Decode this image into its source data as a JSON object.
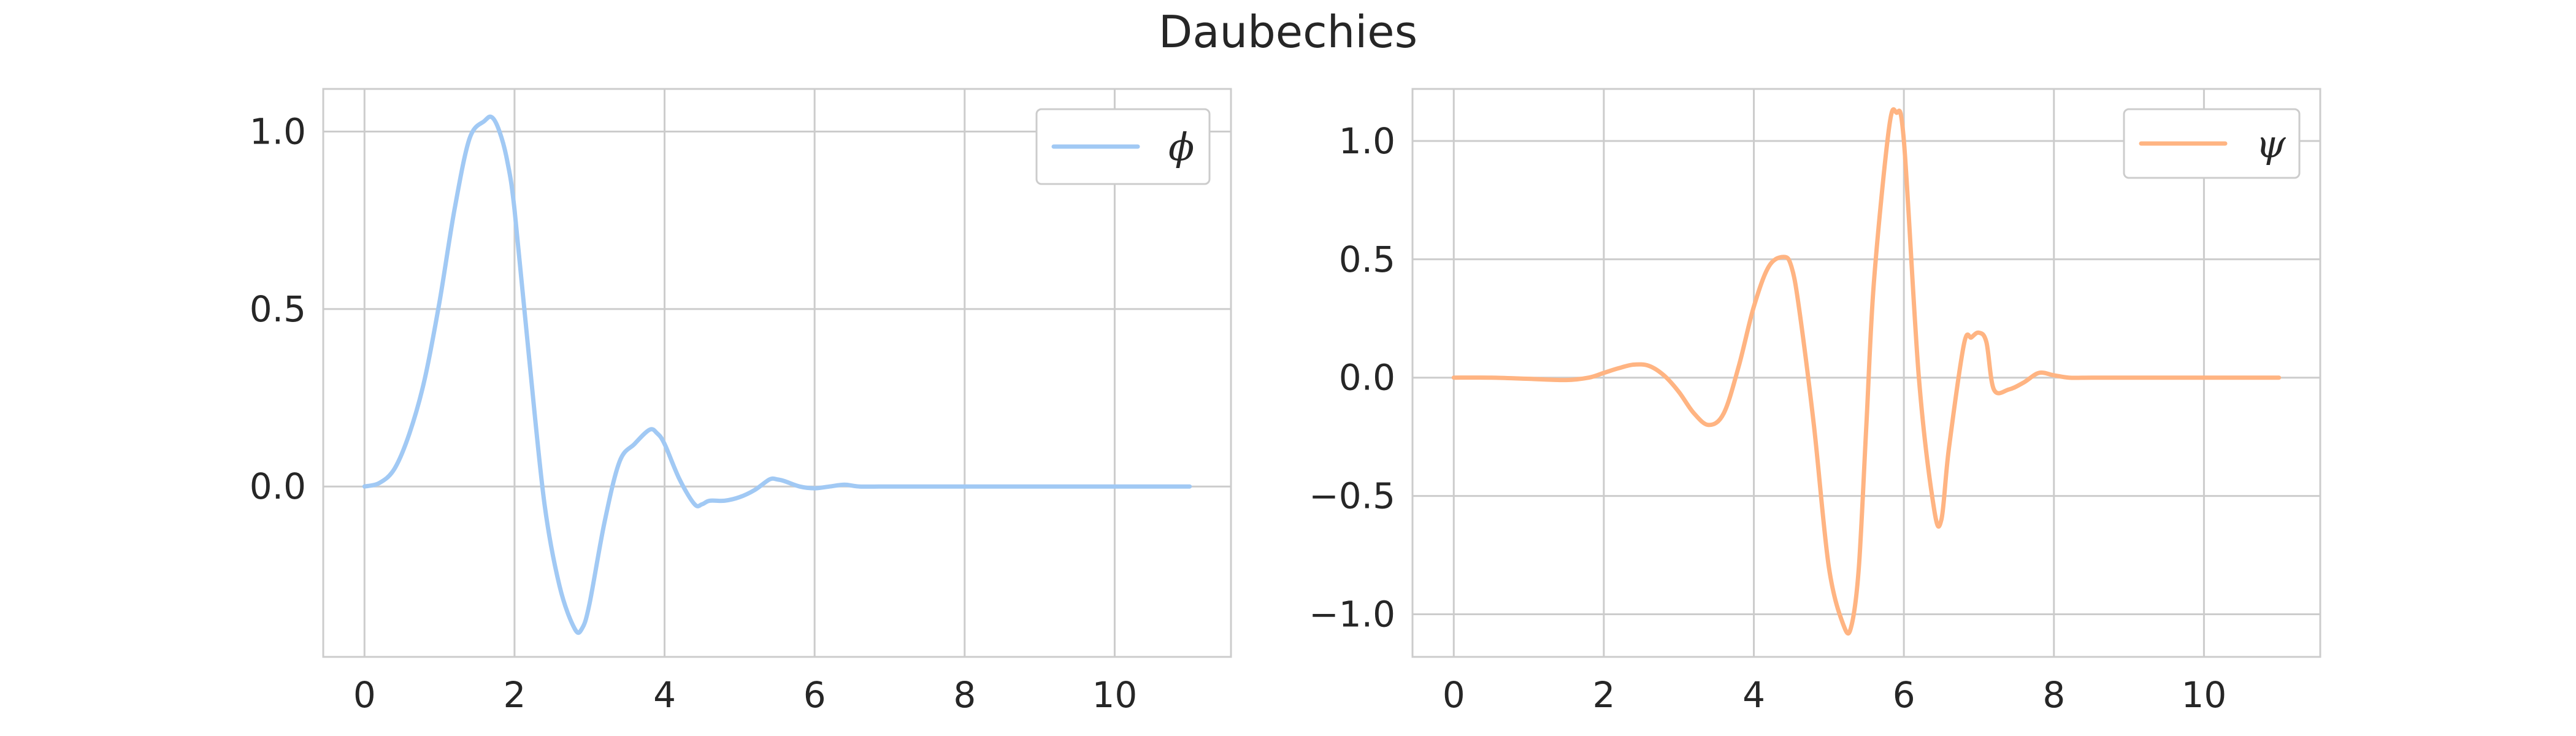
{
  "figure": {
    "title": "Daubechies"
  },
  "chart_data": [
    {
      "type": "line",
      "title": "",
      "xlabel": "",
      "ylabel": "",
      "xlim": [
        -0.55,
        11.55
      ],
      "ylim": [
        -0.48,
        1.12
      ],
      "xticks": [
        "0",
        "2",
        "4",
        "6",
        "8",
        "10"
      ],
      "yticks": [
        "0.0",
        "0.5",
        "1.0"
      ],
      "xtick_values": [
        0,
        2,
        4,
        6,
        8,
        10
      ],
      "ytick_values": [
        0.0,
        0.5,
        1.0
      ],
      "grid": true,
      "legend_position": "top-right",
      "series": [
        {
          "name": "ϕ",
          "color": "#a1c9f4",
          "x": [
            0,
            0.2,
            0.4,
            0.6,
            0.8,
            1.0,
            1.2,
            1.4,
            1.6,
            1.7,
            1.8,
            1.9,
            2.0,
            2.2,
            2.4,
            2.6,
            2.8,
            2.9,
            3.0,
            3.2,
            3.4,
            3.6,
            3.8,
            3.9,
            4.0,
            4.2,
            4.4,
            4.5,
            4.6,
            4.8,
            5.0,
            5.2,
            5.4,
            5.5,
            5.6,
            5.8,
            6.0,
            6.2,
            6.4,
            6.6,
            7.0,
            7.4,
            8.0,
            9.0,
            10.0,
            11.0
          ],
          "y": [
            0.0,
            0.01,
            0.05,
            0.15,
            0.3,
            0.52,
            0.78,
            0.98,
            1.03,
            1.04,
            1.0,
            0.92,
            0.78,
            0.35,
            -0.05,
            -0.28,
            -0.4,
            -0.4,
            -0.33,
            -0.1,
            0.07,
            0.12,
            0.16,
            0.15,
            0.12,
            0.02,
            -0.05,
            -0.05,
            -0.04,
            -0.04,
            -0.03,
            -0.01,
            0.02,
            0.02,
            0.015,
            0.0,
            -0.005,
            0.0,
            0.005,
            0.0,
            0.0,
            0.0,
            0.0,
            0.0,
            0.0,
            0.0
          ]
        }
      ]
    },
    {
      "type": "line",
      "title": "",
      "xlabel": "",
      "ylabel": "",
      "xlim": [
        -0.55,
        11.55
      ],
      "ylim": [
        -1.18,
        1.22
      ],
      "xticks": [
        "0",
        "2",
        "4",
        "6",
        "8",
        "10"
      ],
      "yticks": [
        "−1.0",
        "−0.5",
        "0.0",
        "0.5",
        "1.0"
      ],
      "xtick_values": [
        0,
        2,
        4,
        6,
        8,
        10
      ],
      "ytick_values": [
        -1.0,
        -0.5,
        0.0,
        0.5,
        1.0
      ],
      "grid": true,
      "legend_position": "top-right",
      "series": [
        {
          "name": "ψ",
          "color": "#ffb482",
          "x": [
            0,
            0.5,
            1.0,
            1.5,
            1.8,
            2.0,
            2.2,
            2.4,
            2.6,
            2.8,
            3.0,
            3.2,
            3.4,
            3.6,
            3.8,
            4.0,
            4.2,
            4.4,
            4.5,
            4.6,
            4.8,
            5.0,
            5.2,
            5.3,
            5.4,
            5.5,
            5.6,
            5.8,
            5.9,
            6.0,
            6.2,
            6.4,
            6.5,
            6.6,
            6.8,
            6.9,
            7.0,
            7.1,
            7.2,
            7.4,
            7.6,
            7.8,
            8.0,
            8.2,
            8.5,
            9.0,
            10.0,
            11.0
          ],
          "y": [
            0.0,
            0.0,
            -0.005,
            -0.01,
            0.0,
            0.02,
            0.04,
            0.055,
            0.05,
            0.01,
            -0.06,
            -0.15,
            -0.2,
            -0.15,
            0.05,
            0.3,
            0.47,
            0.51,
            0.47,
            0.3,
            -0.2,
            -0.8,
            -1.05,
            -1.05,
            -0.8,
            -0.2,
            0.4,
            1.05,
            1.12,
            1.0,
            0.0,
            -0.55,
            -0.6,
            -0.3,
            0.14,
            0.17,
            0.19,
            0.15,
            -0.05,
            -0.05,
            -0.02,
            0.02,
            0.01,
            0.0,
            0.0,
            0.0,
            0.0,
            0.0
          ]
        }
      ]
    }
  ]
}
